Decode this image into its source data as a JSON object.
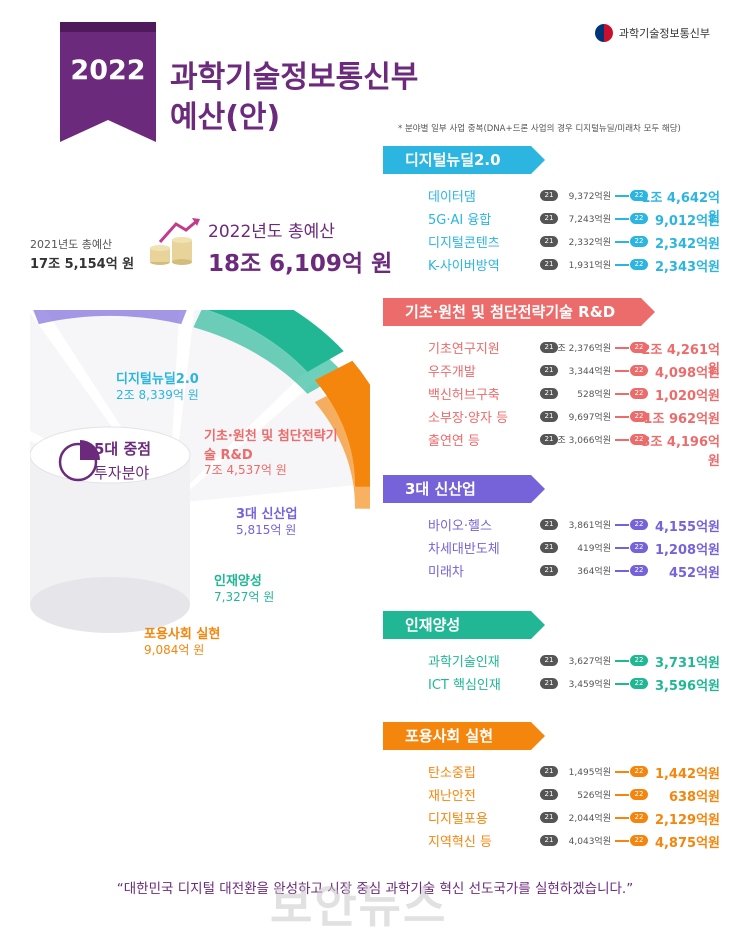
{
  "header": {
    "year": "2022",
    "title_line1": "과학기술정보통신부",
    "title_line2": "예산(안)",
    "ministry": "과학기술정보통신부",
    "footnote": "* 분야별 일부 사업 중복(DNA+드론 사업의 경우 디지털뉴딜/미래차 모두 해당)"
  },
  "totals": {
    "prev_label": "2021년도 총예산",
    "prev_value": "17조 5,154억 원",
    "current_label": "2022년도 총예산",
    "current_value": "18조 6,109억 원"
  },
  "center": {
    "title": "5대 중점",
    "subtitle": "투자분야"
  },
  "slogan": "“대한민국 디지털 대전환을 완성하고 시장 중심 과학기술 혁신 선도국가를 실현하겠습니다.”",
  "watermark": "보안뉴스",
  "badge_21": "21",
  "badge_22": "22",
  "chart_data": {
    "type": "pie",
    "title": "5대 중점 투자분야",
    "unit": "억 원",
    "categories": [
      "디지털뉴딜2.0",
      "기초·원천 및 첨단전략기술 R&D",
      "3대 신산업",
      "인재양성",
      "포용사회 실현"
    ],
    "values": [
      28339,
      74537,
      5815,
      7327,
      9084
    ],
    "value_labels": [
      "2조 8,339억 원",
      "7조 4,537억 원",
      "5,815억 원",
      "7,327억 원",
      "9,084억 원"
    ],
    "colors": [
      "#2bb5e0",
      "#ec6b6b",
      "#7663d9",
      "#21b795",
      "#f5860d"
    ],
    "sections": [
      {
        "name": "디지털뉴딜2.0",
        "color": "#2bb5e0",
        "items": [
          {
            "label": "데이터댐",
            "v2021": "9,372억원",
            "v2022": "1조 4,642억원"
          },
          {
            "label": "5G·AI 융합",
            "v2021": "7,243억원",
            "v2022": "9,012억원"
          },
          {
            "label": "디지털콘텐츠",
            "v2021": "2,332억원",
            "v2022": "2,342억원"
          },
          {
            "label": "K-사이버방역",
            "v2021": "1,931억원",
            "v2022": "2,343억원"
          }
        ]
      },
      {
        "name": "기초·원천 및 첨단전략기술 R&D",
        "color": "#ec6b6b",
        "items": [
          {
            "label": "기초연구지원",
            "v2021": "2조 2,376억원",
            "v2022": "2조 4,261억원"
          },
          {
            "label": "우주개발",
            "v2021": "3,344억원",
            "v2022": "4,098억원"
          },
          {
            "label": "백신허브구축",
            "v2021": "528억원",
            "v2022": "1,020억원"
          },
          {
            "label": "소부장·양자 등",
            "v2021": "9,697억원",
            "v2022": "1조 962억원"
          },
          {
            "label": "출연연 등",
            "v2021": "3조 3,066억원",
            "v2022": "3조 4,196억원"
          }
        ]
      },
      {
        "name": "3대 신산업",
        "color": "#7663d9",
        "items": [
          {
            "label": "바이오·헬스",
            "v2021": "3,861억원",
            "v2022": "4,155억원"
          },
          {
            "label": "차세대반도체",
            "v2021": "419억원",
            "v2022": "1,208억원"
          },
          {
            "label": "미래차",
            "v2021": "364억원",
            "v2022": "452억원"
          }
        ]
      },
      {
        "name": "인재양성",
        "color": "#21b795",
        "items": [
          {
            "label": "과학기술인재",
            "v2021": "3,627억원",
            "v2022": "3,731억원"
          },
          {
            "label": "ICT 핵심인재",
            "v2021": "3,459억원",
            "v2022": "3,596억원"
          }
        ]
      },
      {
        "name": "포용사회 실현",
        "color": "#f5860d",
        "items": [
          {
            "label": "탄소중립",
            "v2021": "1,495억원",
            "v2022": "1,442억원"
          },
          {
            "label": "재난안전",
            "v2021": "526억원",
            "v2022": "638억원"
          },
          {
            "label": "디지털포용",
            "v2021": "2,044억원",
            "v2022": "2,129억원"
          },
          {
            "label": "지역혁신 등",
            "v2021": "4,043억원",
            "v2022": "4,875억원"
          }
        ]
      }
    ]
  }
}
